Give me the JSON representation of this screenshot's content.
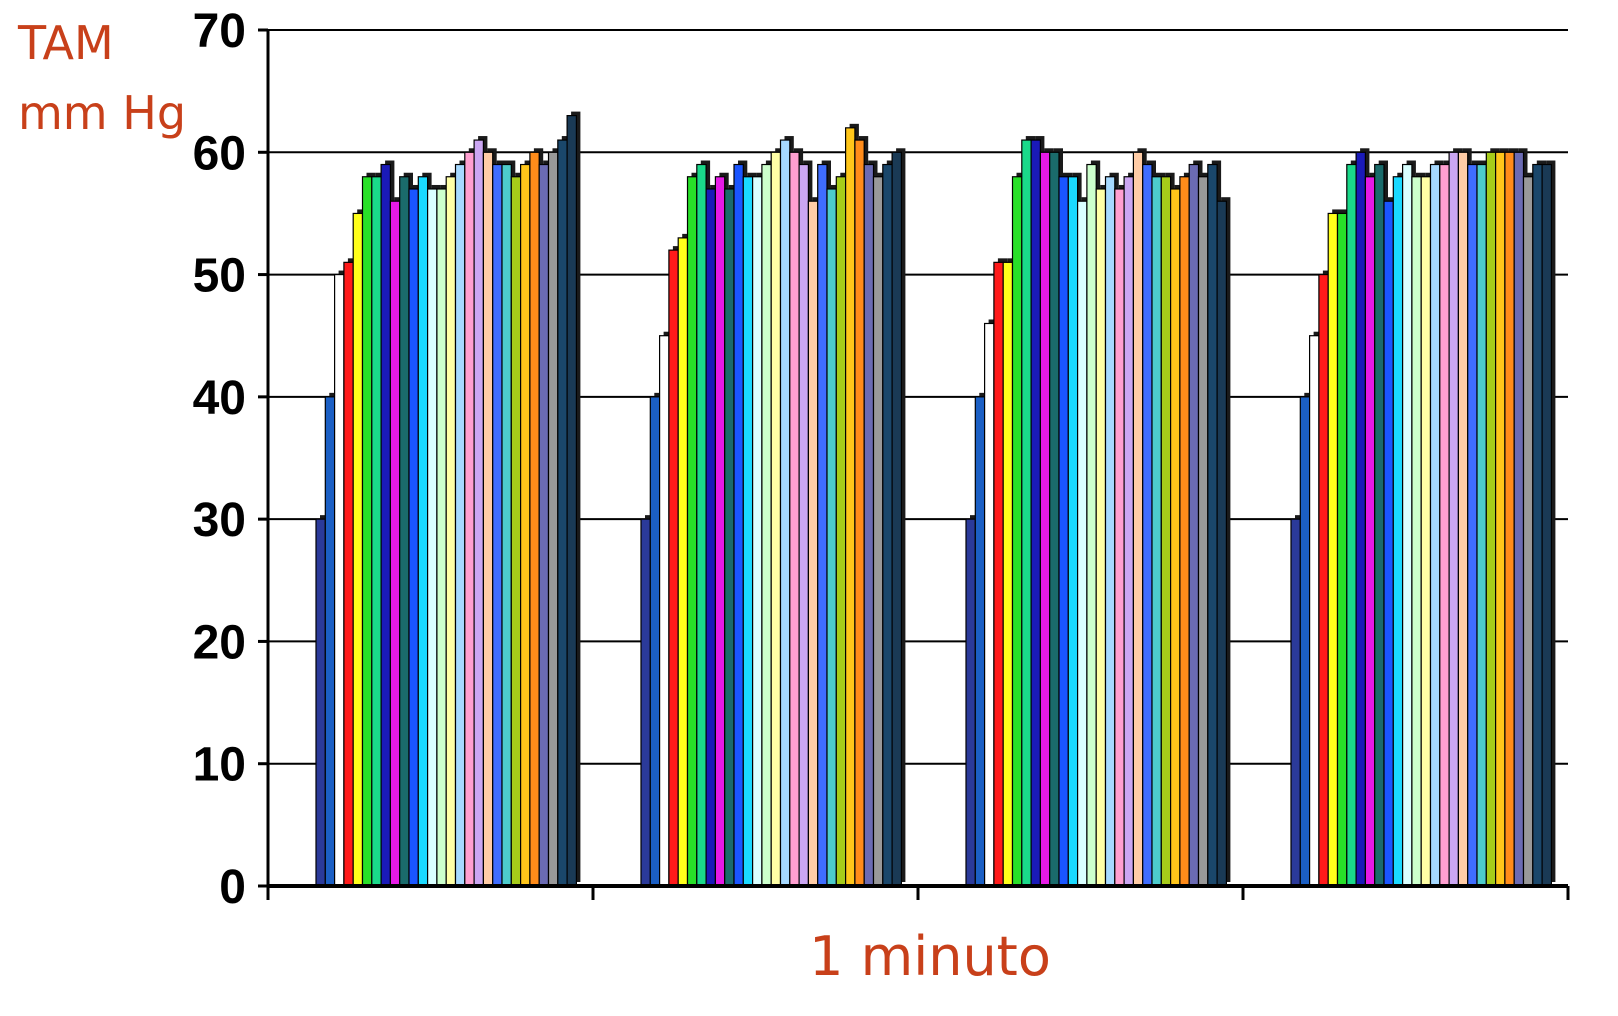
{
  "chart_data": {
    "type": "bar",
    "ylabel_lines": [
      "TAM",
      "mm Hg"
    ],
    "xlabel": "1 minuto",
    "ylim": [
      0,
      70
    ],
    "yticks": [
      0,
      10,
      20,
      30,
      40,
      50,
      60,
      70
    ],
    "grid": true,
    "legend": "none",
    "groups": [
      {
        "values": [
          30,
          40,
          50,
          51,
          55,
          58,
          58,
          59,
          56,
          58,
          57,
          58,
          57,
          57,
          58,
          59,
          60,
          61,
          60,
          59,
          59,
          58,
          59,
          60,
          59,
          60,
          61,
          63
        ]
      },
      {
        "values": [
          30,
          40,
          45,
          52,
          53,
          58,
          59,
          57,
          58,
          57,
          59,
          58,
          58,
          59,
          60,
          61,
          60,
          59,
          56,
          59,
          57,
          58,
          62,
          61,
          59,
          58,
          59,
          60
        ]
      },
      {
        "values": [
          30,
          40,
          46,
          51,
          51,
          58,
          61,
          61,
          60,
          60,
          58,
          58,
          56,
          59,
          57,
          58,
          57,
          58,
          60,
          59,
          58,
          58,
          57,
          58,
          59,
          58,
          59,
          56
        ]
      },
      {
        "values": [
          30,
          40,
          45,
          50,
          55,
          55,
          59,
          60,
          58,
          59,
          56,
          58,
          59,
          58,
          58,
          59,
          59,
          60,
          60,
          59,
          59,
          60,
          60,
          60,
          60,
          58,
          59,
          59
        ]
      }
    ],
    "colors": [
      "#2b3a9a",
      "#1b5fc4",
      "#ffffff",
      "#ff1a1a",
      "#ffff1a",
      "#28e028",
      "#1ad98a",
      "#1a1ab8",
      "#e61ae6",
      "#1a6b6b",
      "#1a55ff",
      "#1ad9ff",
      "#d9ffff",
      "#ccffcc",
      "#ffffa6",
      "#a6d9ff",
      "#ff9fd0",
      "#cba6f2",
      "#ffcca6",
      "#3f6dff",
      "#4dcccc",
      "#a6cc1a",
      "#ffc61a",
      "#ff8c1a",
      "#6b6bb3",
      "#999999",
      "#1a476b",
      "#1a3a55"
    ]
  }
}
